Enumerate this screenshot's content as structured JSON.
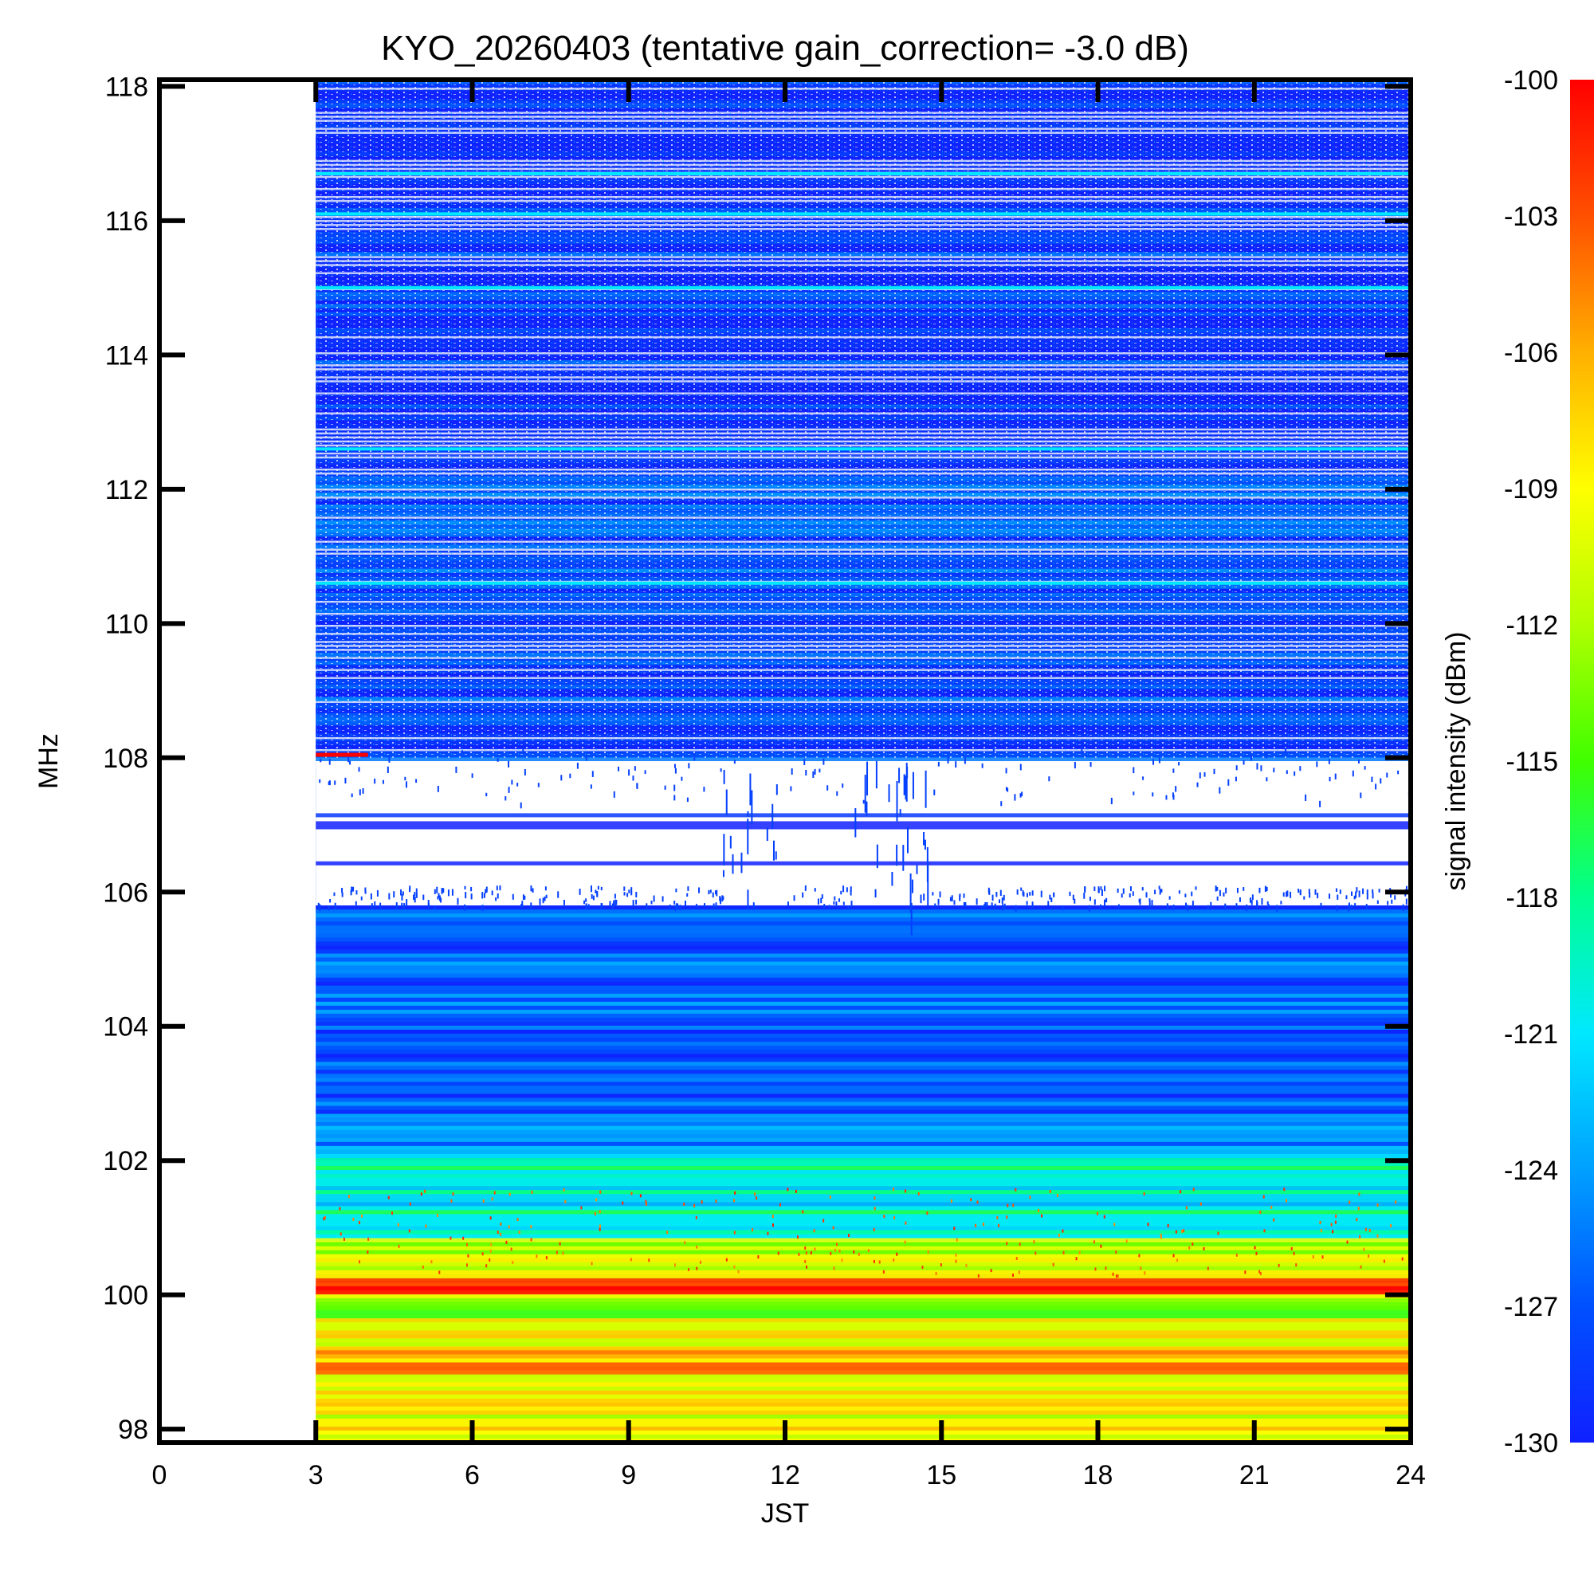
{
  "chart_data": {
    "type": "heatmap",
    "title": "KYO_20260403 (tentative gain_correction= -3.0 dB)",
    "xlabel": "JST",
    "ylabel": "MHz",
    "colorbar_label": "signal intensity (dBm)",
    "xlim": [
      0,
      24
    ],
    "ylim": [
      97.8,
      118.1
    ],
    "x_ticks": [
      "0",
      "3",
      "6",
      "9",
      "12",
      "15",
      "18",
      "21",
      "24"
    ],
    "y_ticks": [
      "98",
      "100",
      "102",
      "104",
      "106",
      "108",
      "110",
      "112",
      "114",
      "116",
      "118"
    ],
    "colorbar_ticks": [
      "-100",
      "-103",
      "-106",
      "-109",
      "-112",
      "-115",
      "-118",
      "-121",
      "-124",
      "-127",
      "-130"
    ],
    "colorbar_range": [
      -130,
      -100
    ],
    "colormap": [
      "#1020ff",
      "#0050ff",
      "#00a0ff",
      "#00e8ff",
      "#00ff90",
      "#40ff00",
      "#b0ff00",
      "#ffff00",
      "#ffb000",
      "#ff5000",
      "#ff0000"
    ],
    "data_start_jst": 3,
    "data_end_jst": 24,
    "bands": [
      {
        "f_start": 97.8,
        "f_end": 98.3,
        "mean_dbm": -110
      },
      {
        "f_start": 98.3,
        "f_end": 98.8,
        "mean_dbm": -109
      },
      {
        "f_start": 98.8,
        "f_end": 99.2,
        "mean_dbm": -106
      },
      {
        "f_start": 99.2,
        "f_end": 99.6,
        "mean_dbm": -110
      },
      {
        "f_start": 99.6,
        "f_end": 100.0,
        "mean_dbm": -113
      },
      {
        "f_start": 100.0,
        "f_end": 100.2,
        "mean_dbm": -101
      },
      {
        "f_start": 100.2,
        "f_end": 100.8,
        "mean_dbm": -111
      },
      {
        "f_start": 100.8,
        "f_end": 101.4,
        "mean_dbm": -120
      },
      {
        "f_start": 101.4,
        "f_end": 102.0,
        "mean_dbm": -119
      },
      {
        "f_start": 102.0,
        "f_end": 102.6,
        "mean_dbm": -124
      },
      {
        "f_start": 102.6,
        "f_end": 103.3,
        "mean_dbm": -127
      },
      {
        "f_start": 103.3,
        "f_end": 104.0,
        "mean_dbm": -128
      },
      {
        "f_start": 104.0,
        "f_end": 104.6,
        "mean_dbm": -126
      },
      {
        "f_start": 104.6,
        "f_end": 105.8,
        "mean_dbm": -127
      },
      {
        "f_start": 105.8,
        "f_end": 108.0,
        "mean_dbm": -129
      },
      {
        "f_start": 108.0,
        "f_end": 112.5,
        "mean_dbm": -128
      },
      {
        "f_start": 112.5,
        "f_end": 118.1,
        "mean_dbm": -129
      }
    ],
    "grid": false,
    "legend": "colorbar-right"
  }
}
